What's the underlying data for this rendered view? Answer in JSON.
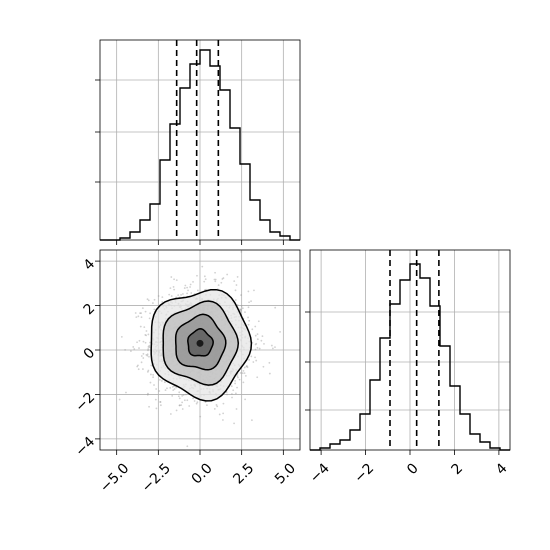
{
  "chart_data": [
    {
      "panel": "top-left",
      "type": "histogram",
      "title": "",
      "xlabel": "",
      "ylabel": "",
      "xlim": [
        -6.0,
        6.0
      ],
      "bins": [
        -6.0,
        -5.4,
        -4.8,
        -4.2,
        -3.6,
        -3.0,
        -2.4,
        -1.8,
        -1.2,
        -0.6,
        0.0,
        0.6,
        1.2,
        1.8,
        2.4,
        3.0,
        3.6,
        4.2,
        4.8,
        5.4,
        6.0
      ],
      "counts": [
        0.0,
        0.0,
        0.01,
        0.04,
        0.1,
        0.18,
        0.4,
        0.58,
        0.76,
        0.88,
        0.95,
        0.87,
        0.75,
        0.56,
        0.38,
        0.2,
        0.1,
        0.04,
        0.02,
        0.0
      ],
      "ylim": [
        0,
        1.0
      ],
      "quantile_lines": [
        -1.4,
        -0.2,
        1.1
      ],
      "y_tick_positions": [
        0.29,
        0.54,
        0.8
      ],
      "x_tick_labels_shown": false,
      "y_tick_labels_shown": false,
      "grid": true
    },
    {
      "panel": "bottom-left",
      "type": "scatter-contour",
      "xlabel": "",
      "ylabel": "",
      "xlim": [
        -6.0,
        6.0
      ],
      "ylim": [
        -4.5,
        4.5
      ],
      "x_ticks": [
        -5.0,
        -2.5,
        0.0,
        2.5,
        5.0
      ],
      "x_tick_labels": [
        "−5.0",
        "−2.5",
        "0.0",
        "2.5",
        "5.0"
      ],
      "y_ticks": [
        -4,
        -2,
        0,
        2,
        4
      ],
      "y_tick_labels": [
        "−4",
        "−2",
        "0",
        "2",
        "4"
      ],
      "center": [
        0.0,
        0.3
      ],
      "sigma": [
        1.5,
        1.2
      ],
      "n_points": 1800,
      "contour_levels_sigma": [
        0.5,
        1.0,
        1.5,
        2.0
      ],
      "grid": true
    },
    {
      "panel": "bottom-right",
      "type": "histogram",
      "xlabel": "",
      "ylabel": "",
      "xlim": [
        -4.5,
        4.5
      ],
      "bins": [
        -4.5,
        -4.05,
        -3.6,
        -3.15,
        -2.7,
        -2.25,
        -1.8,
        -1.35,
        -0.9,
        -0.45,
        0.0,
        0.45,
        0.9,
        1.35,
        1.8,
        2.25,
        2.7,
        3.15,
        3.6,
        4.05,
        4.5
      ],
      "counts": [
        0.0,
        0.01,
        0.03,
        0.05,
        0.1,
        0.18,
        0.35,
        0.56,
        0.73,
        0.85,
        0.93,
        0.86,
        0.72,
        0.52,
        0.32,
        0.18,
        0.08,
        0.04,
        0.01,
        0.0
      ],
      "ylim": [
        0,
        1.0
      ],
      "quantile_lines": [
        -0.9,
        0.3,
        1.3
      ],
      "x_ticks": [
        -4,
        -2,
        0,
        2,
        4
      ],
      "x_tick_labels": [
        "−4",
        "−2",
        "0",
        "2",
        "4"
      ],
      "y_tick_positions": [
        0.2,
        0.44,
        0.69
      ],
      "y_tick_labels_shown": false,
      "grid": true
    }
  ],
  "colors": {
    "line": "#000000",
    "grid": "#b0b0b0",
    "points": "#9a9a9a",
    "density_dark": "#1a1a1a",
    "background": "#ffffff"
  }
}
